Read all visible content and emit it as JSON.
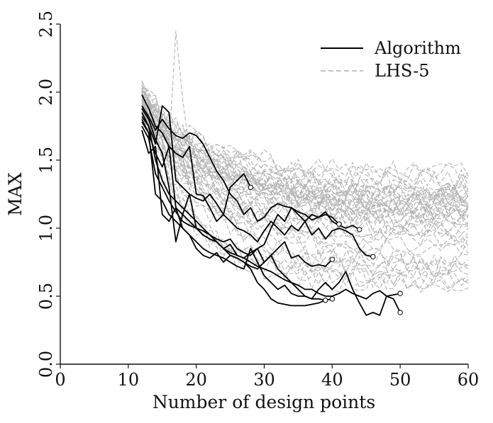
{
  "chart_data": {
    "type": "line",
    "title": "",
    "xlabel": "Number of design points",
    "ylabel": "MAX",
    "xlim": [
      0,
      60
    ],
    "ylim": [
      0.0,
      2.5
    ],
    "x_ticks": [
      "0",
      "10",
      "20",
      "30",
      "40",
      "50",
      "60"
    ],
    "y_ticks": [
      "0.0",
      "0.5",
      "1.0",
      "1.5",
      "2.0",
      "2.5"
    ],
    "grid": false,
    "legend": {
      "placement": "top-right",
      "entries": [
        {
          "label": "Algorithm",
          "style": "solid",
          "color": "#000000"
        },
        {
          "label": "LHS-5",
          "style": "dashed",
          "color": "#b0b0b0"
        }
      ]
    },
    "algorithm_series": [
      {
        "x": [
          12,
          13,
          14,
          15,
          16,
          17,
          18,
          19,
          20,
          21,
          22,
          23,
          24,
          25,
          26,
          27,
          28
        ],
        "y": [
          1.98,
          1.88,
          1.75,
          1.7,
          1.6,
          1.55,
          1.52,
          1.6,
          1.25,
          1.24,
          1.15,
          1.05,
          1.1,
          1.3,
          1.35,
          1.4,
          1.3
        ]
      },
      {
        "x": [
          12,
          13,
          14,
          15,
          16,
          17,
          18,
          19,
          20,
          21,
          22,
          23,
          24,
          25,
          26,
          27,
          28,
          29,
          30,
          31,
          32,
          33,
          34,
          35,
          36,
          37,
          38,
          39,
          40,
          41
        ],
        "y": [
          1.9,
          1.82,
          1.72,
          1.8,
          1.73,
          1.68,
          1.66,
          1.7,
          1.68,
          1.62,
          1.52,
          1.42,
          1.35,
          1.25,
          1.2,
          1.1,
          1.15,
          1.05,
          1.08,
          1.15,
          1.18,
          1.16,
          1.15,
          1.12,
          1.1,
          1.06,
          1.08,
          1.1,
          1.08,
          1.03
        ]
      },
      {
        "x": [
          12,
          13,
          14,
          15,
          16,
          17,
          18,
          19,
          20,
          21,
          22,
          23,
          24,
          25,
          26,
          27,
          28,
          29,
          30,
          31,
          32,
          33,
          34,
          35,
          36,
          37,
          38,
          39,
          40,
          41,
          42,
          43,
          44
        ],
        "y": [
          1.85,
          1.75,
          1.62,
          1.9,
          1.85,
          1.35,
          1.3,
          1.25,
          1.22,
          1.2,
          1.25,
          1.18,
          1.1,
          1.05,
          1.0,
          0.98,
          0.95,
          0.9,
          0.98,
          1.05,
          1.0,
          0.95,
          1.02,
          0.98,
          1.05,
          1.1,
          1.08,
          1.12,
          1.05,
          1.02,
          1.0,
          1.02,
          0.99
        ]
      },
      {
        "x": [
          12,
          13,
          14,
          15,
          16,
          17,
          18,
          19,
          20,
          21,
          22,
          23,
          24,
          25,
          26,
          27,
          28,
          29,
          30,
          31,
          32,
          33,
          34,
          35,
          36,
          37,
          38,
          39,
          40,
          41,
          42,
          43,
          44,
          45,
          46
        ],
        "y": [
          1.8,
          1.7,
          1.55,
          1.45,
          1.6,
          1.15,
          1.1,
          1.05,
          1.0,
          0.98,
          0.95,
          0.92,
          0.9,
          0.92,
          0.85,
          0.82,
          0.8,
          0.85,
          0.88,
          1.0,
          1.1,
          1.05,
          1.15,
          1.1,
          1.05,
          0.95,
          1.0,
          0.92,
          0.98,
          1.0,
          0.98,
          0.95,
          0.85,
          0.8,
          0.79
        ]
      },
      {
        "x": [
          12,
          13,
          14,
          15,
          16,
          17,
          18,
          19,
          20,
          21,
          22,
          23,
          24,
          25,
          26,
          27,
          28,
          29,
          30,
          31,
          32,
          33,
          34,
          35,
          36,
          37,
          38,
          39,
          40
        ],
        "y": [
          1.75,
          1.66,
          1.4,
          1.3,
          1.2,
          1.12,
          1.05,
          1.02,
          1.0,
          0.95,
          0.92,
          0.9,
          0.85,
          0.88,
          0.8,
          0.78,
          0.82,
          0.85,
          0.75,
          0.8,
          0.85,
          0.9,
          0.78,
          0.8,
          0.75,
          0.72,
          0.73,
          0.72,
          0.77
        ]
      },
      {
        "x": [
          12,
          13,
          14,
          15,
          16,
          17,
          18,
          19,
          20,
          21,
          22,
          23,
          24,
          25,
          26,
          27,
          28,
          29,
          30,
          31,
          32,
          33,
          34,
          35,
          36,
          37,
          38,
          39,
          40
        ],
        "y": [
          1.78,
          1.7,
          1.25,
          1.2,
          1.1,
          1.05,
          1.0,
          0.95,
          0.9,
          0.85,
          0.82,
          0.8,
          0.78,
          0.75,
          0.72,
          0.7,
          0.85,
          0.75,
          0.65,
          0.6,
          0.55,
          0.58,
          0.52,
          0.5,
          0.5,
          0.48,
          0.48,
          0.47,
          0.48
        ]
      },
      {
        "x": [
          12,
          13,
          14,
          15,
          16,
          17,
          18,
          19,
          20,
          21,
          22,
          23,
          24,
          25,
          26,
          27,
          28,
          29,
          30,
          31,
          32,
          33,
          34,
          35,
          36,
          37,
          38,
          39
        ],
        "y": [
          1.72,
          1.55,
          1.6,
          1.1,
          1.05,
          1.15,
          1.0,
          0.95,
          0.85,
          0.8,
          0.78,
          0.82,
          0.75,
          0.8,
          0.78,
          0.75,
          0.7,
          0.6,
          0.55,
          0.48,
          0.45,
          0.44,
          0.43,
          0.43,
          0.43,
          0.44,
          0.45,
          0.47
        ]
      },
      {
        "x": [
          12,
          13,
          14,
          15,
          16,
          17,
          18,
          19,
          20,
          21,
          22,
          23,
          24,
          25,
          26,
          27,
          28,
          29,
          30,
          31,
          32,
          33,
          34,
          35,
          36,
          37,
          38,
          39,
          40,
          41,
          42,
          43,
          44,
          45,
          46,
          47,
          48,
          49,
          50
        ],
        "y": [
          1.82,
          1.75,
          1.5,
          1.35,
          1.25,
          1.2,
          1.15,
          1.1,
          1.05,
          1.0,
          0.95,
          0.9,
          0.85,
          0.8,
          0.78,
          0.75,
          0.72,
          0.7,
          0.75,
          0.8,
          0.7,
          0.65,
          0.6,
          0.55,
          0.5,
          0.48,
          0.55,
          0.6,
          0.55,
          0.6,
          0.68,
          0.55,
          0.45,
          0.36,
          0.38,
          0.36,
          0.5,
          0.48,
          0.38
        ]
      },
      {
        "x": [
          12,
          13,
          14,
          15,
          16,
          17,
          18,
          19,
          20,
          21,
          22,
          23,
          24,
          25,
          26,
          27,
          28,
          29,
          30,
          31,
          32,
          33,
          34,
          35,
          36,
          37,
          38,
          39,
          40,
          41,
          42,
          43,
          44,
          45,
          46,
          47,
          48,
          49,
          50
        ],
        "y": [
          1.88,
          1.8,
          1.65,
          1.55,
          1.3,
          0.9,
          1.1,
          1.25,
          1.0,
          0.95,
          0.92,
          0.9,
          0.85,
          0.82,
          0.8,
          0.78,
          0.75,
          0.72,
          0.7,
          0.68,
          0.65,
          0.62,
          0.6,
          0.58,
          0.55,
          0.55,
          0.52,
          0.5,
          0.5,
          0.52,
          0.55,
          0.52,
          0.5,
          0.48,
          0.52,
          0.54,
          0.5,
          0.51,
          0.52
        ]
      }
    ],
    "lhs5_summary": {
      "count": 50,
      "x_start": 12,
      "x_end": 60,
      "start_y_range": [
        1.85,
        2.05
      ],
      "end_y_range": [
        0.55,
        1.42
      ],
      "max_peak": {
        "x": 17,
        "y": 2.45
      }
    }
  }
}
